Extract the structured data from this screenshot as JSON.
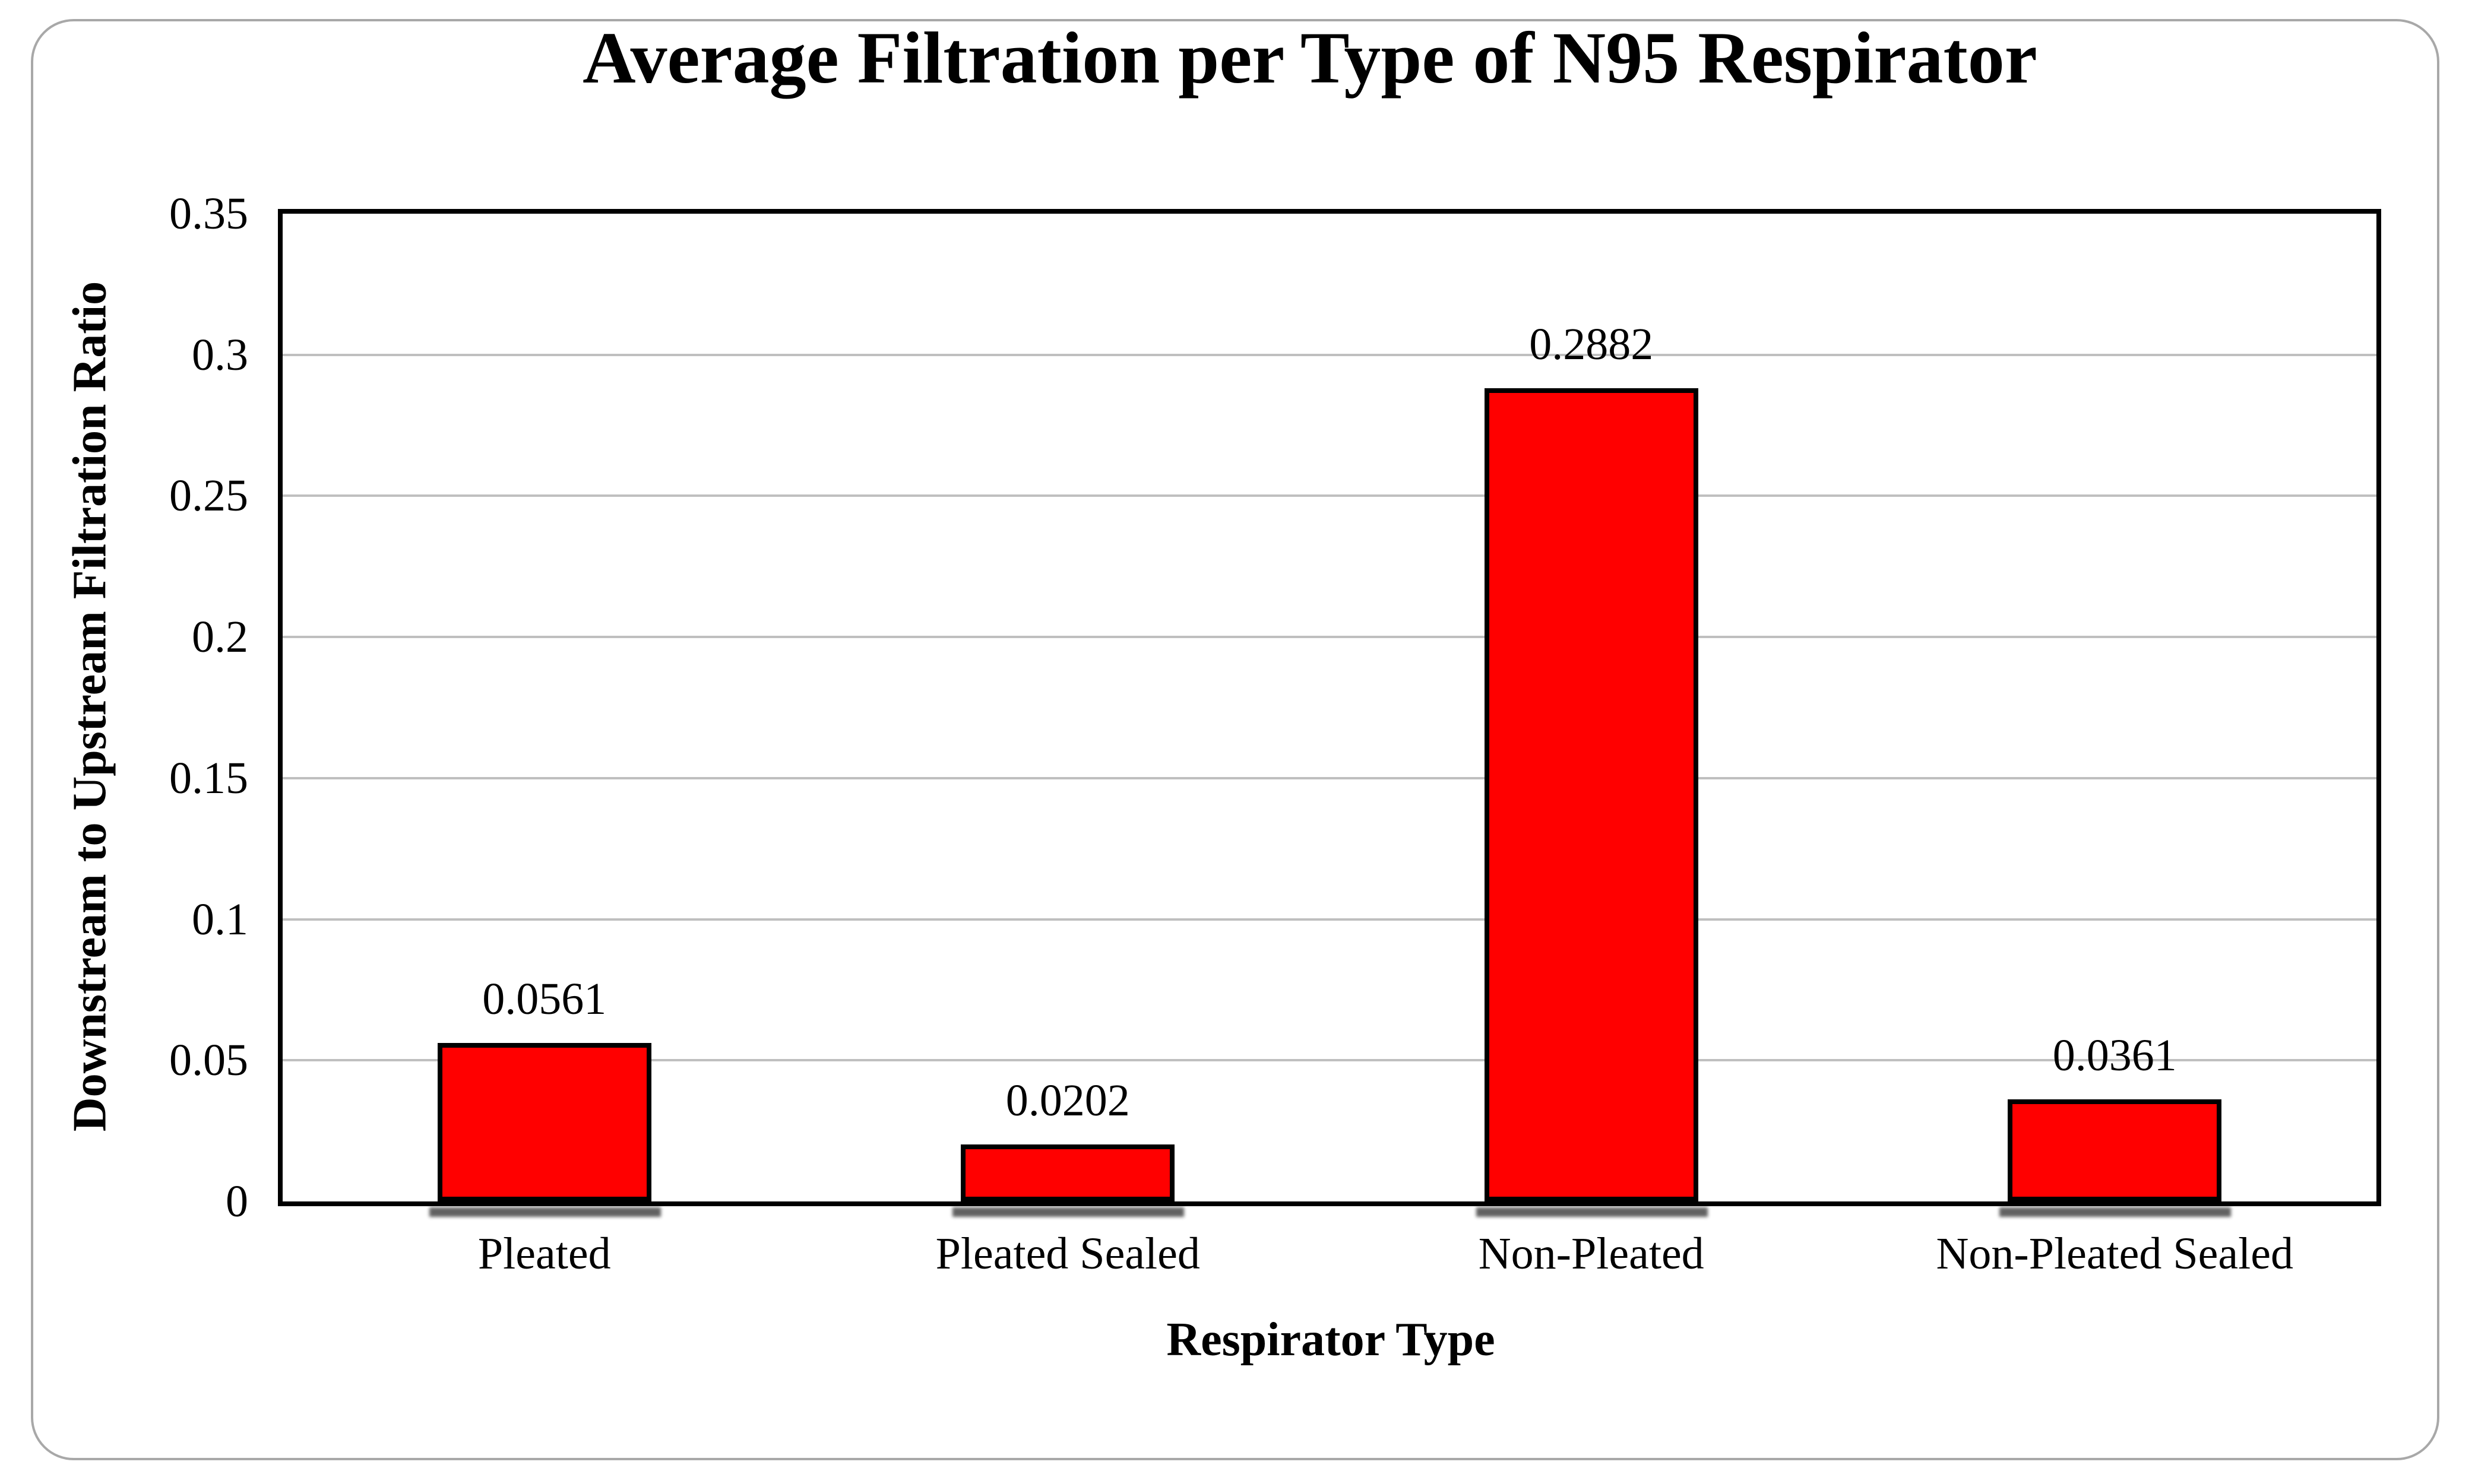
{
  "figure": {
    "title": "Average Filtration per Type of N95 Respirator",
    "x_axis_title": "Respirator Type",
    "y_axis_title": "Downstream to Upstream Filtration Ratio"
  },
  "chart_data": {
    "type": "bar",
    "title": "Average Filtration per Type of N95 Respirator",
    "categories": [
      "Pleated",
      "Pleated Sealed",
      "Non-Pleated",
      "Non-Pleated Sealed"
    ],
    "values": [
      0.0561,
      0.0202,
      0.2882,
      0.0361
    ],
    "data_labels": [
      "0.0561",
      "0.0202",
      "0.2882",
      "0.0361"
    ],
    "xlabel": "Respirator Type",
    "ylabel": "Downstream to Upstream Filtration Ratio",
    "ylim": [
      0,
      0.35
    ],
    "ytick_step": 0.05,
    "yticks": [
      "0",
      "0.05",
      "0.1",
      "0.15",
      "0.2",
      "0.25",
      "0.3",
      "0.35"
    ],
    "grid": true,
    "legend_position": "none",
    "bar_fill_color": "#ff0000",
    "bar_border_color": "#000000",
    "gridline_color": "#bfbfbf",
    "plot_border_color": "#000000",
    "frame_border_color": "#a8a8a8"
  }
}
